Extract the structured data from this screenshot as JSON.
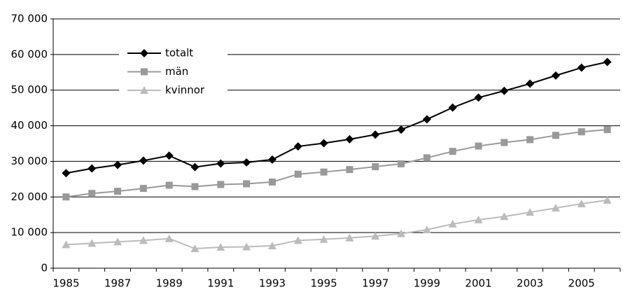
{
  "chart_data": {
    "type": "line",
    "categories": [
      "1985",
      null,
      "1987",
      null,
      "1989",
      null,
      "1991",
      null,
      "1993",
      null,
      "1995",
      null,
      "1997",
      null,
      "1999",
      null,
      "2001",
      null,
      "2003",
      null,
      "2005",
      null
    ],
    "series": [
      {
        "name": "totalt",
        "color": "#000000",
        "marker": "diamond",
        "values": [
          26700,
          28000,
          29000,
          30200,
          31600,
          28400,
          29400,
          29700,
          30500,
          34200,
          35100,
          36200,
          37500,
          38900,
          41800,
          45100,
          47900,
          49800,
          51800,
          54100,
          56300,
          57900
        ]
      },
      {
        "name": "män",
        "color": "#999999",
        "marker": "square",
        "values": [
          20000,
          21000,
          21600,
          22400,
          23300,
          22900,
          23500,
          23700,
          24200,
          26400,
          27000,
          27700,
          28500,
          29300,
          31000,
          32800,
          34300,
          35300,
          36100,
          37300,
          38300,
          38900
        ]
      },
      {
        "name": "kvinnor",
        "color": "#bbbbbb",
        "marker": "triangle",
        "values": [
          6600,
          7000,
          7400,
          7800,
          8300,
          5500,
          5900,
          6000,
          6300,
          7800,
          8100,
          8500,
          9000,
          9700,
          10800,
          12400,
          13600,
          14500,
          15700,
          16900,
          18100,
          19100
        ]
      }
    ],
    "ylim": [
      0,
      70000
    ],
    "yticks": [
      0,
      {
        "value": 10000,
        "label": "10 000"
      },
      {
        "value": 20000,
        "label": "20 000"
      },
      {
        "value": 30000,
        "label": "30 000"
      },
      {
        "value": 40000,
        "label": "40 000"
      },
      {
        "value": 50000,
        "label": "50 000"
      },
      {
        "value": 60000,
        "label": "60 000"
      },
      {
        "value": 70000,
        "label": "70 000"
      }
    ],
    "grid": true,
    "legend": "upper-left"
  }
}
